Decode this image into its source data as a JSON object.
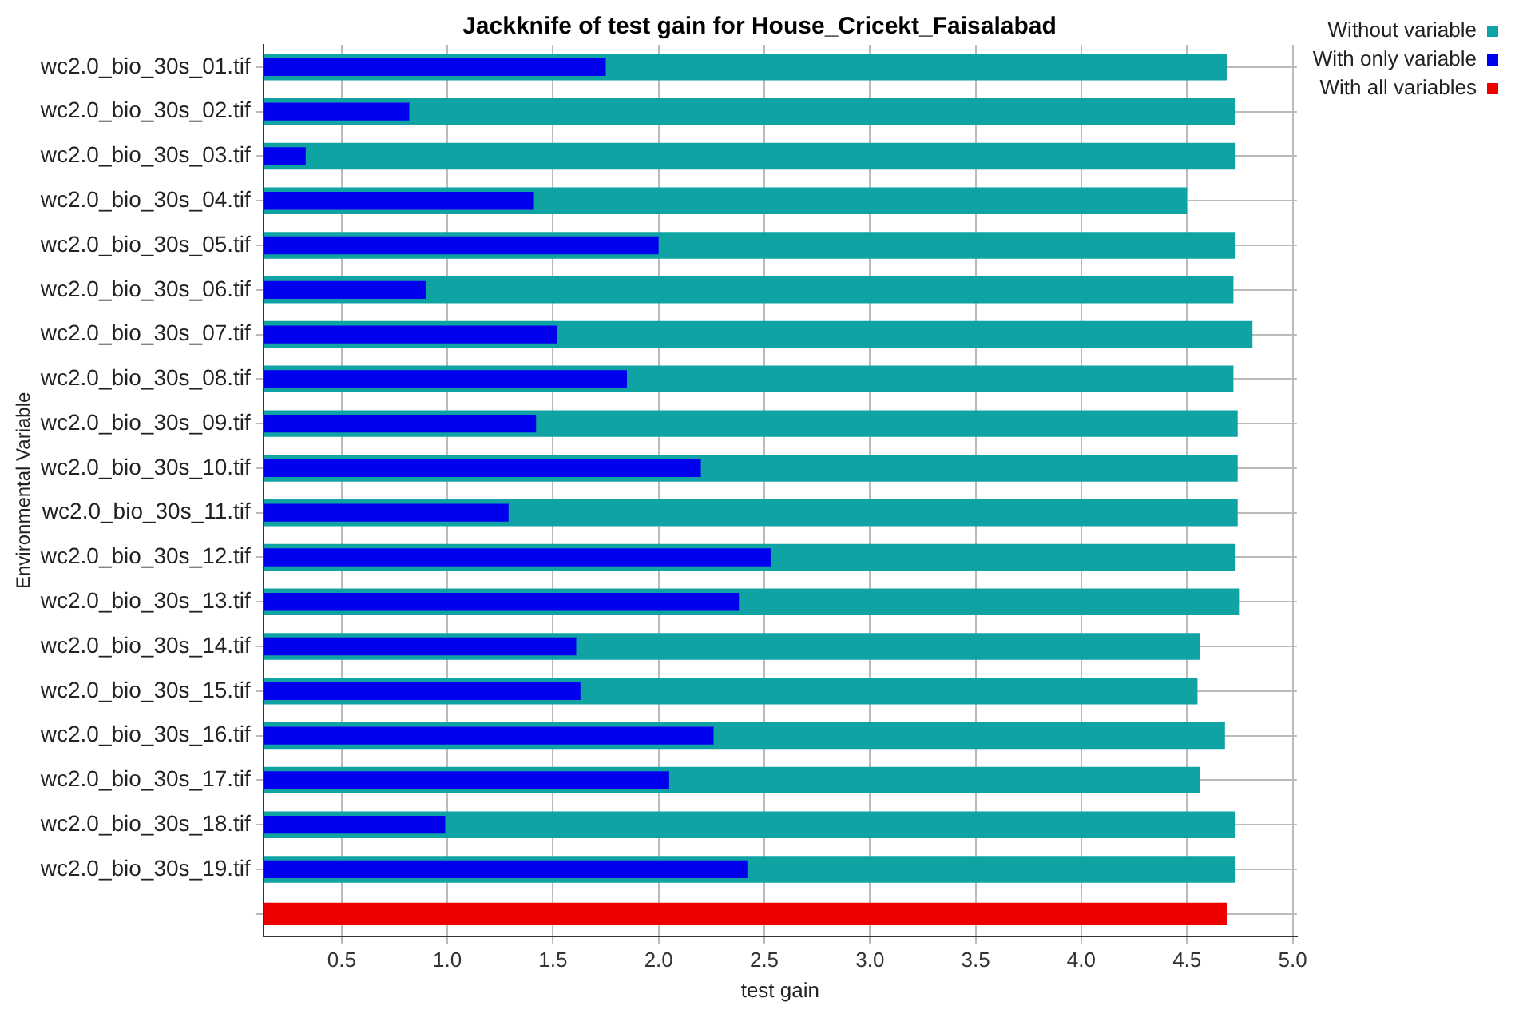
{
  "chart_data": {
    "type": "bar",
    "orientation": "horizontal",
    "title": "Jackknife of test gain for House_Cricekt_Faisalabad",
    "xlabel": "test gain",
    "ylabel": "Environmental Variable",
    "categories": [
      "wc2.0_bio_30s_01.tif",
      "wc2.0_bio_30s_02.tif",
      "wc2.0_bio_30s_03.tif",
      "wc2.0_bio_30s_04.tif",
      "wc2.0_bio_30s_05.tif",
      "wc2.0_bio_30s_06.tif",
      "wc2.0_bio_30s_07.tif",
      "wc2.0_bio_30s_08.tif",
      "wc2.0_bio_30s_09.tif",
      "wc2.0_bio_30s_10.tif",
      "wc2.0_bio_30s_11.tif",
      "wc2.0_bio_30s_12.tif",
      "wc2.0_bio_30s_13.tif",
      "wc2.0_bio_30s_14.tif",
      "wc2.0_bio_30s_15.tif",
      "wc2.0_bio_30s_16.tif",
      "wc2.0_bio_30s_17.tif",
      "wc2.0_bio_30s_18.tif",
      "wc2.0_bio_30s_19.tif",
      null
    ],
    "series": [
      {
        "name": "Without variable",
        "color": "#0fa3a3",
        "values": [
          4.69,
          4.73,
          4.73,
          4.5,
          4.73,
          4.72,
          4.81,
          4.72,
          4.74,
          4.74,
          4.74,
          4.73,
          4.75,
          4.56,
          4.55,
          4.68,
          4.56,
          4.73,
          4.73,
          null
        ]
      },
      {
        "name": "With only variable",
        "color": "#0000ee",
        "values": [
          1.75,
          0.82,
          0.33,
          1.41,
          2.0,
          0.9,
          1.52,
          1.85,
          1.42,
          2.2,
          1.29,
          2.53,
          2.38,
          1.61,
          1.63,
          2.26,
          2.05,
          0.99,
          2.42,
          null
        ]
      },
      {
        "name": "With all variables",
        "color": "#ee0000",
        "values": [
          null,
          null,
          null,
          null,
          null,
          null,
          null,
          null,
          null,
          null,
          null,
          null,
          null,
          null,
          null,
          null,
          null,
          null,
          null,
          4.69
        ]
      }
    ],
    "xlim": [
      0.13,
      5.02
    ],
    "xticks": [
      {
        "value": 0.5,
        "label": "0.5"
      },
      {
        "value": 1,
        "label": "1.0"
      },
      {
        "value": 1.5,
        "label": "1.5"
      },
      {
        "value": 2,
        "label": "2.0"
      },
      {
        "value": 2.5,
        "label": "2.5"
      },
      {
        "value": 3,
        "label": "3.0"
      },
      {
        "value": 3.5,
        "label": "3.5"
      },
      {
        "value": 4,
        "label": "4.0"
      },
      {
        "value": 4.5,
        "label": "4.5"
      },
      {
        "value": 5,
        "label": "5.0"
      }
    ],
    "grid": true,
    "legend": "top right"
  }
}
